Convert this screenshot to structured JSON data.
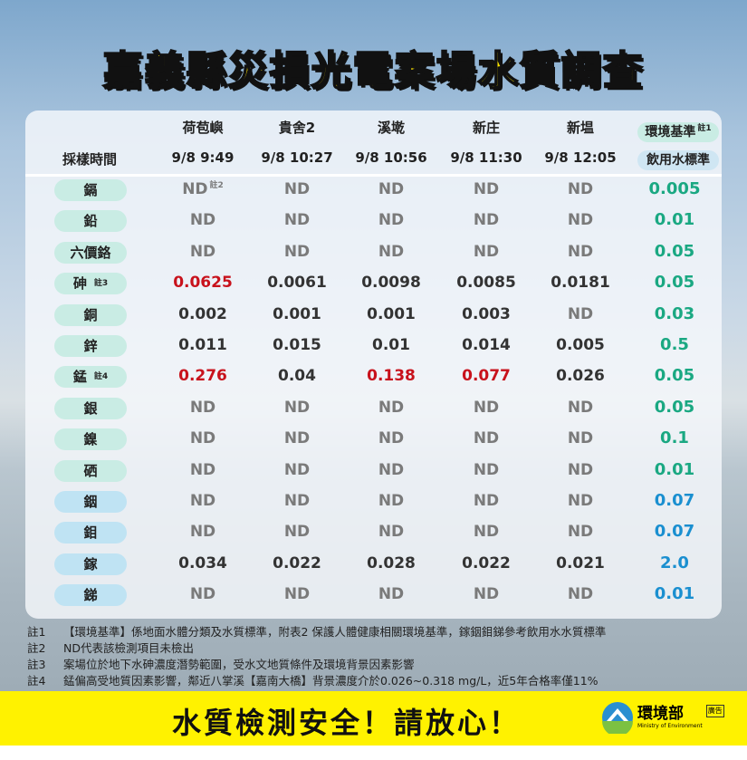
{
  "title": "嘉義縣災損光電案場水質調查",
  "table": {
    "time_label": "採樣時間",
    "sites": [
      {
        "name": "荷苞嶼",
        "time": "9/8 9:49"
      },
      {
        "name": "貴舍2",
        "time": "9/8 10:27"
      },
      {
        "name": "溪墘",
        "time": "9/8 10:56"
      },
      {
        "name": "新庄",
        "time": "9/8 11:30"
      },
      {
        "name": "新塭",
        "time": "9/8 12:05"
      }
    ],
    "std_header1": "環境基準",
    "std_header1_note": "註1",
    "std_header2": "飲用水標準",
    "nd_note": "註2",
    "rows": [
      {
        "name": "鎘",
        "values": [
          "ND",
          "ND",
          "ND",
          "ND",
          "ND"
        ],
        "std": "0.005",
        "group": "env"
      },
      {
        "name": "鉛",
        "values": [
          "ND",
          "ND",
          "ND",
          "ND",
          "ND"
        ],
        "std": "0.01",
        "group": "env"
      },
      {
        "name": "六價鉻",
        "values": [
          "ND",
          "ND",
          "ND",
          "ND",
          "ND"
        ],
        "std": "0.05",
        "group": "env"
      },
      {
        "name": "砷",
        "note": "註3",
        "values": [
          "0.0625",
          "0.0061",
          "0.0098",
          "0.0085",
          "0.0181"
        ],
        "exceed": [
          true,
          false,
          false,
          false,
          false
        ],
        "std": "0.05",
        "group": "env"
      },
      {
        "name": "銅",
        "values": [
          "0.002",
          "0.001",
          "0.001",
          "0.003",
          "ND"
        ],
        "std": "0.03",
        "group": "env"
      },
      {
        "name": "鋅",
        "values": [
          "0.011",
          "0.015",
          "0.01",
          "0.014",
          "0.005"
        ],
        "std": "0.5",
        "group": "env"
      },
      {
        "name": "錳",
        "note": "註4",
        "values": [
          "0.276",
          "0.04",
          "0.138",
          "0.077",
          "0.026"
        ],
        "exceed": [
          true,
          false,
          true,
          true,
          false
        ],
        "std": "0.05",
        "group": "env"
      },
      {
        "name": "銀",
        "values": [
          "ND",
          "ND",
          "ND",
          "ND",
          "ND"
        ],
        "std": "0.05",
        "group": "env"
      },
      {
        "name": "鎳",
        "values": [
          "ND",
          "ND",
          "ND",
          "ND",
          "ND"
        ],
        "std": "0.1",
        "group": "env"
      },
      {
        "name": "硒",
        "values": [
          "ND",
          "ND",
          "ND",
          "ND",
          "ND"
        ],
        "std": "0.01",
        "group": "env"
      },
      {
        "name": "銦",
        "values": [
          "ND",
          "ND",
          "ND",
          "ND",
          "ND"
        ],
        "std": "0.07",
        "group": "drink"
      },
      {
        "name": "鉬",
        "values": [
          "ND",
          "ND",
          "ND",
          "ND",
          "ND"
        ],
        "std": "0.07",
        "group": "drink"
      },
      {
        "name": "鎵",
        "values": [
          "0.034",
          "0.022",
          "0.028",
          "0.022",
          "0.021"
        ],
        "std": "2.0",
        "group": "drink"
      },
      {
        "name": "銻",
        "values": [
          "ND",
          "ND",
          "ND",
          "ND",
          "ND"
        ],
        "std": "0.01",
        "group": "drink"
      }
    ]
  },
  "notes": [
    {
      "key": "註1",
      "text": "【環境基準】係地面水體分類及水質標準，附表2 保護人體健康相關環境基準，鎵銦鉬銻參考飲用水水質標準"
    },
    {
      "key": "註2",
      "text": "ND代表該檢測項目未檢出"
    },
    {
      "key": "註3",
      "text": "案場位於地下水砷濃度潛勢範圍，受水文地質條件及環境背景因素影響"
    },
    {
      "key": "註4",
      "text": "錳偏高受地質因素影響，鄰近八掌溪【嘉南大橋】背景濃度介於0.026~0.318 mg/L，近5年合格率僅11%"
    }
  ],
  "footer": {
    "slogan": "水質檢測安全！請放心！",
    "logo_text": "環境部",
    "logo_sub": "Ministry of Environment",
    "ad_label": "廣告"
  },
  "colors": {
    "title": "#ffe600",
    "exceed": "#c8121c",
    "env_std": "#1aa882",
    "drink_std": "#1a8fd0",
    "footer_bar": "#fff200"
  }
}
